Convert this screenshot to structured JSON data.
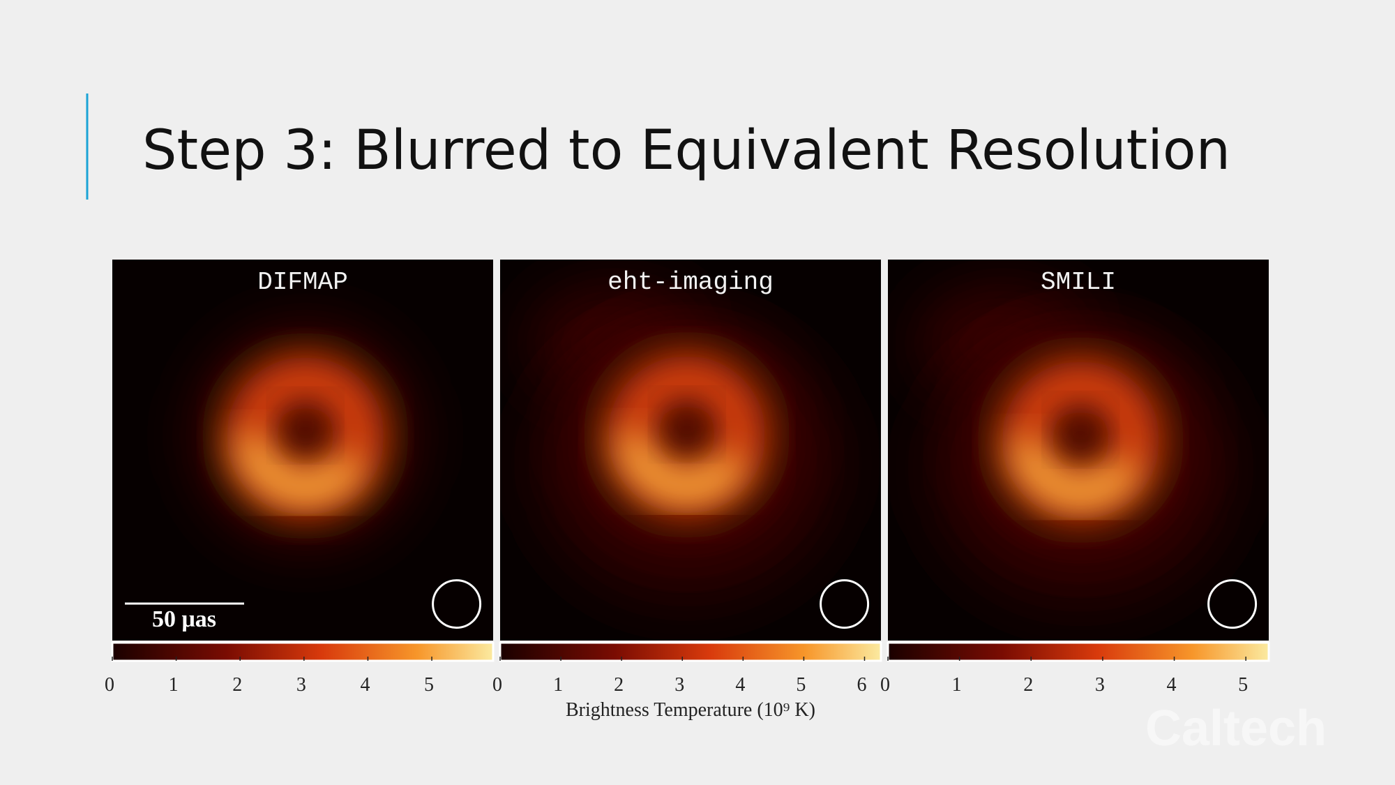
{
  "header": {
    "title": "Step 3: Blurred to Equivalent Resolution"
  },
  "panels": [
    {
      "label": "DIFMAP",
      "colorbar": {
        "range": [
          0,
          5.96
        ],
        "ticks": [
          0,
          1,
          2,
          3,
          4,
          5
        ]
      }
    },
    {
      "label": "eht-imaging",
      "colorbar": {
        "range": [
          0,
          6.27
        ],
        "ticks": [
          0,
          1,
          2,
          3,
          4,
          5,
          6
        ]
      }
    },
    {
      "label": "SMILI",
      "colorbar": {
        "range": [
          0,
          5.32
        ],
        "ticks": [
          0,
          1,
          2,
          3,
          4,
          5
        ]
      }
    }
  ],
  "scale_bar": "50 μas",
  "colorbar_label": "Brightness Temperature (10⁹ K)",
  "watermark": "Caltech"
}
